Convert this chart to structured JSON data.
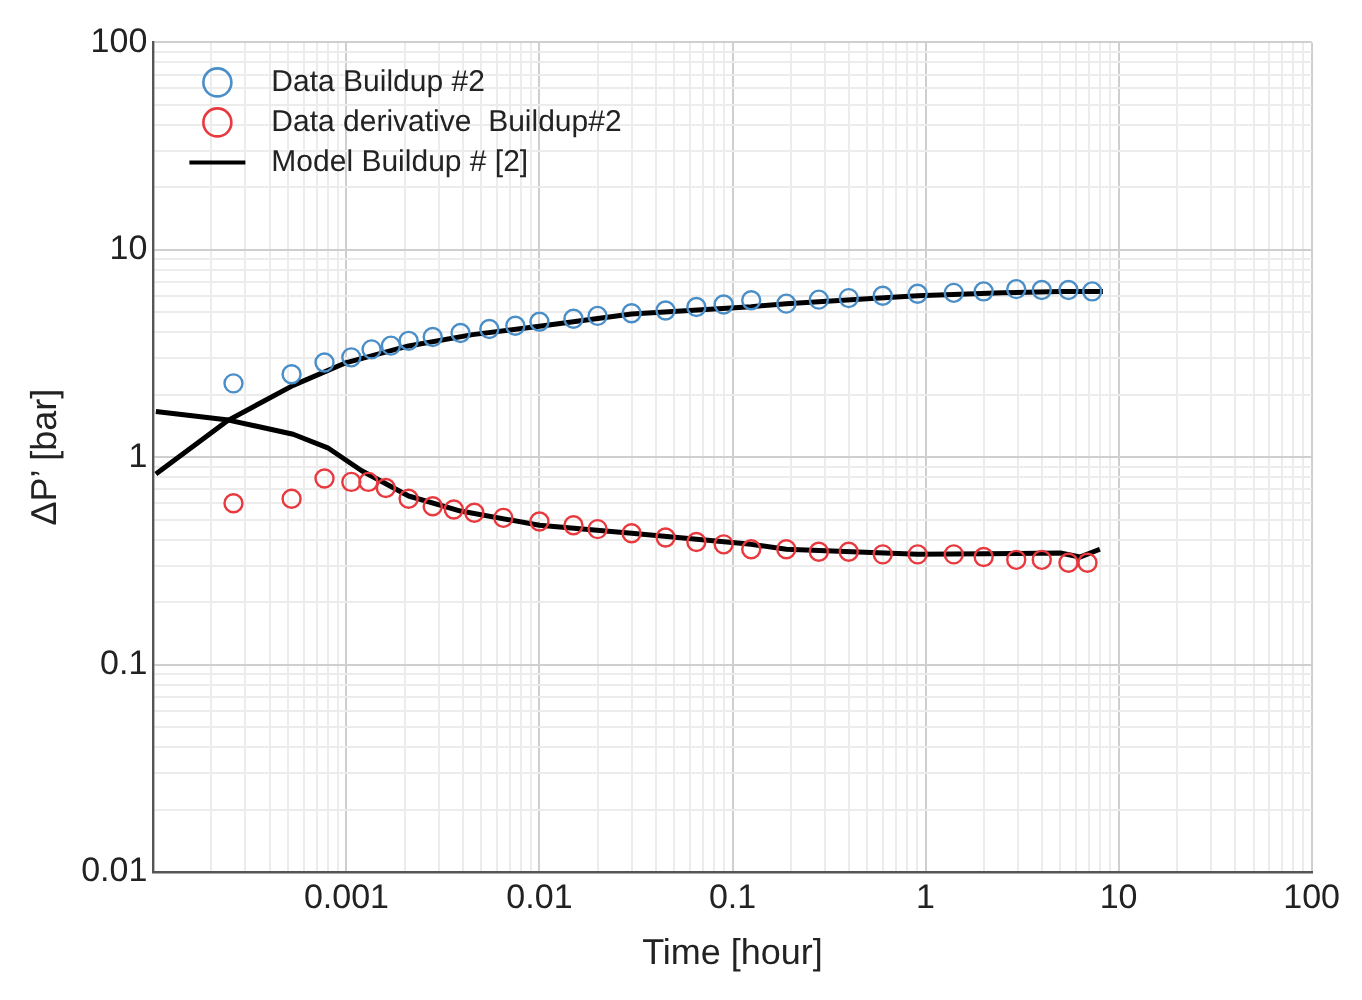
{
  "chart_data": {
    "type": "scatter",
    "xlabel": "Time [hour]",
    "ylabel": "ΔP’ [bar]",
    "log": "xy",
    "grid": true,
    "legend": "top left",
    "marker": "circle",
    "xlim": [
      0.0001,
      100
    ],
    "ylim": [
      0.01,
      100
    ],
    "xticks": [
      {
        "value": 0.0002,
        "label": null
      },
      {
        "value": 0.0003,
        "label": null
      },
      {
        "value": 0.0004,
        "label": null
      },
      {
        "value": 0.0005,
        "label": null
      },
      {
        "value": 0.0006,
        "label": null
      },
      {
        "value": 0.0007,
        "label": null
      },
      {
        "value": 0.0008,
        "label": null
      },
      {
        "value": 0.0009,
        "label": null
      },
      0.001,
      {
        "value": 0.002,
        "label": null
      },
      {
        "value": 0.003,
        "label": null
      },
      {
        "value": 0.004,
        "label": null
      },
      {
        "value": 0.005,
        "label": null
      },
      {
        "value": 0.006,
        "label": null
      },
      {
        "value": 0.007,
        "label": null
      },
      {
        "value": 0.008,
        "label": null
      },
      {
        "value": 0.009,
        "label": null
      },
      0.01,
      {
        "value": 0.02,
        "label": null
      },
      {
        "value": 0.03,
        "label": null
      },
      {
        "value": 0.04,
        "label": null
      },
      {
        "value": 0.05,
        "label": null
      },
      {
        "value": 0.06,
        "label": null
      },
      {
        "value": 0.07,
        "label": null
      },
      {
        "value": 0.08,
        "label": null
      },
      {
        "value": 0.09,
        "label": null
      },
      0.1,
      {
        "value": 0.2,
        "label": null
      },
      {
        "value": 0.3,
        "label": null
      },
      {
        "value": 0.4,
        "label": null
      },
      {
        "value": 0.5,
        "label": null
      },
      {
        "value": 0.6,
        "label": null
      },
      {
        "value": 0.7,
        "label": null
      },
      {
        "value": 0.8,
        "label": null
      },
      {
        "value": 0.9,
        "label": null
      },
      1,
      {
        "value": 2,
        "label": null
      },
      {
        "value": 3,
        "label": null
      },
      {
        "value": 4,
        "label": null
      },
      {
        "value": 5,
        "label": null
      },
      {
        "value": 6,
        "label": null
      },
      {
        "value": 7,
        "label": null
      },
      {
        "value": 8,
        "label": null
      },
      {
        "value": 9,
        "label": null
      },
      10,
      {
        "value": 20,
        "label": null
      },
      {
        "value": 30,
        "label": null
      },
      {
        "value": 40,
        "label": null
      },
      {
        "value": 50,
        "label": null
      },
      {
        "value": 60,
        "label": null
      },
      {
        "value": 70,
        "label": null
      },
      {
        "value": 80,
        "label": null
      },
      {
        "value": 90,
        "label": null
      },
      100
    ],
    "yticks": [
      0.01,
      {
        "value": 0.02,
        "label": null
      },
      {
        "value": 0.03,
        "label": null
      },
      {
        "value": 0.04,
        "label": null
      },
      {
        "value": 0.05,
        "label": null
      },
      {
        "value": 0.06,
        "label": null
      },
      {
        "value": 0.07,
        "label": null
      },
      {
        "value": 0.08,
        "label": null
      },
      {
        "value": 0.09,
        "label": null
      },
      0.1,
      {
        "value": 0.2,
        "label": null
      },
      {
        "value": 0.3,
        "label": null
      },
      {
        "value": 0.4,
        "label": null
      },
      {
        "value": 0.5,
        "label": null
      },
      {
        "value": 0.6,
        "label": null
      },
      {
        "value": 0.7,
        "label": null
      },
      {
        "value": 0.8,
        "label": null
      },
      {
        "value": 0.9,
        "label": null
      },
      1,
      {
        "value": 2,
        "label": null
      },
      {
        "value": 3,
        "label": null
      },
      {
        "value": 4,
        "label": null
      },
      {
        "value": 5,
        "label": null
      },
      {
        "value": 6,
        "label": null
      },
      {
        "value": 7,
        "label": null
      },
      {
        "value": 8,
        "label": null
      },
      {
        "value": 9,
        "label": null
      },
      10,
      {
        "value": 20,
        "label": null
      },
      {
        "value": 30,
        "label": null
      },
      {
        "value": 40,
        "label": null
      },
      {
        "value": 50,
        "label": null
      },
      {
        "value": 60,
        "label": null
      },
      {
        "value": 70,
        "label": null
      },
      {
        "value": 80,
        "label": null
      },
      {
        "value": 90,
        "label": null
      },
      100
    ],
    "series": [
      {
        "name": "Data Buildup #2",
        "color": "#4a8ec8",
        "x": [
          0.00026,
          0.00052,
          0.00077,
          0.00106,
          0.00135,
          0.0017,
          0.0021,
          0.0028,
          0.0039,
          0.0055,
          0.0075,
          0.01,
          0.015,
          0.02,
          0.03,
          0.045,
          0.065,
          0.09,
          0.125,
          0.19,
          0.28,
          0.4,
          0.6,
          0.91,
          1.4,
          2.0,
          2.95,
          4.0,
          5.5,
          7.3
        ],
        "values": [
          2.27,
          2.51,
          2.86,
          3.03,
          3.31,
          3.45,
          3.64,
          3.8,
          3.97,
          4.15,
          4.3,
          4.5,
          4.65,
          4.8,
          4.94,
          5.1,
          5.3,
          5.45,
          5.71,
          5.5,
          5.75,
          5.85,
          6.0,
          6.14,
          6.2,
          6.3,
          6.46,
          6.4,
          6.4,
          6.3
        ]
      },
      {
        "name": "Data derivative  Buildup#2",
        "color": "#e8393f",
        "x": [
          0.00026,
          0.00052,
          0.00077,
          0.00106,
          0.0013,
          0.0016,
          0.0021,
          0.0028,
          0.0036,
          0.0046,
          0.0065,
          0.01,
          0.015,
          0.02,
          0.03,
          0.045,
          0.065,
          0.09,
          0.125,
          0.19,
          0.28,
          0.4,
          0.6,
          0.91,
          1.4,
          2.0,
          2.95,
          4.0,
          5.5,
          6.9
        ],
        "values": [
          0.6,
          0.63,
          0.79,
          0.76,
          0.76,
          0.71,
          0.63,
          0.58,
          0.56,
          0.54,
          0.51,
          0.49,
          0.47,
          0.45,
          0.43,
          0.41,
          0.39,
          0.38,
          0.36,
          0.36,
          0.35,
          0.35,
          0.34,
          0.34,
          0.34,
          0.33,
          0.32,
          0.32,
          0.31,
          0.31
        ]
      },
      {
        "name": "Model Buildup # [2]",
        "type": "line",
        "marker": "none",
        "color": "#000000",
        "x": [
          0.000103,
          0.000245,
          0.00053,
          0.001,
          0.0021,
          0.0045,
          0.01,
          0.03,
          0.125,
          0.19,
          0.5,
          0.91,
          2.5,
          5.0,
          8.3
        ],
        "values": [
          0.83,
          1.51,
          2.22,
          2.86,
          3.44,
          3.9,
          4.28,
          4.9,
          5.32,
          5.5,
          5.8,
          6.0,
          6.2,
          6.3,
          6.3
        ]
      },
      {
        "type": "line",
        "marker": "none",
        "color": "#000000",
        "x": [
          0.000103,
          0.000245,
          0.00053,
          0.0008,
          0.0012,
          0.0021,
          0.0039,
          0.01,
          0.03,
          0.125,
          0.19,
          0.91,
          5.0,
          6.3,
          8.0
        ],
        "values": [
          1.66,
          1.51,
          1.29,
          1.11,
          0.86,
          0.65,
          0.55,
          0.47,
          0.43,
          0.38,
          0.36,
          0.34,
          0.345,
          0.33,
          0.36
        ]
      }
    ]
  }
}
